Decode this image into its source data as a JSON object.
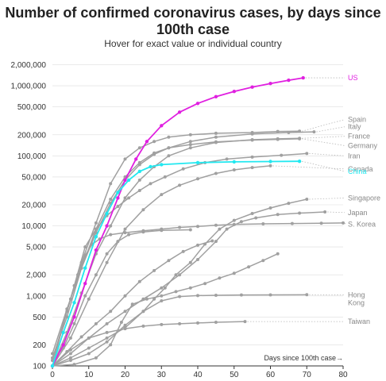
{
  "page": {
    "title": "Number of confirmed coronavirus cases, by days since 100th case",
    "subtitle": "Hover for exact value or individual country"
  },
  "chart_data": {
    "type": "line",
    "title": "Number of confirmed coronavirus cases, by days since 100th case",
    "subtitle": "Hover for exact value or individual country",
    "xlabel": "Days since 100th case→",
    "ylabel": "",
    "xlim": [
      0,
      80
    ],
    "ylim": [
      100,
      2500000
    ],
    "yscale": "log",
    "x_ticks": [
      0,
      10,
      20,
      30,
      40,
      50,
      60,
      70,
      80
    ],
    "x_tick_labels": [
      "0",
      "10",
      "20",
      "30",
      "40",
      "50",
      "60",
      "70",
      "80"
    ],
    "y_ticks": [
      100,
      200,
      500,
      1000,
      2000,
      5000,
      10000,
      20000,
      50000,
      100000,
      200000,
      500000,
      1000000,
      2000000
    ],
    "y_tick_labels": [
      "100",
      "200",
      "500",
      "1,000",
      "2,000",
      "5,000",
      "10,000",
      "20,000",
      "50,000",
      "100,000",
      "200,000",
      "500,000",
      "1,000,000",
      "2,000,000"
    ],
    "grid": true,
    "legend": "none",
    "colors": {
      "us": "#e020e0",
      "china": "#22e8f0",
      "other": "#a0a0a0",
      "leader": "#b8b8b8",
      "axis": "#333333",
      "grid": "#dddddd"
    },
    "series": [
      {
        "name": "US",
        "color": "#e020e0",
        "label_value": 1300000,
        "points": [
          [
            0,
            100
          ],
          [
            3,
            200
          ],
          [
            6,
            500
          ],
          [
            9,
            1500
          ],
          [
            12,
            4500
          ],
          [
            15,
            10000
          ],
          [
            18,
            25000
          ],
          [
            20,
            45000
          ],
          [
            23,
            90000
          ],
          [
            26,
            160000
          ],
          [
            30,
            270000
          ],
          [
            35,
            420000
          ],
          [
            40,
            560000
          ],
          [
            45,
            700000
          ],
          [
            50,
            830000
          ],
          [
            55,
            960000
          ],
          [
            60,
            1080000
          ],
          [
            65,
            1200000
          ],
          [
            69,
            1300000
          ]
        ]
      },
      {
        "name": "China",
        "color": "#22e8f0",
        "label_value": 60000,
        "points": [
          [
            0,
            100
          ],
          [
            3,
            300
          ],
          [
            6,
            800
          ],
          [
            9,
            2500
          ],
          [
            12,
            7000
          ],
          [
            15,
            15000
          ],
          [
            18,
            30000
          ],
          [
            21,
            45000
          ],
          [
            24,
            60000
          ],
          [
            27,
            70000
          ],
          [
            30,
            75000
          ],
          [
            40,
            80000
          ],
          [
            50,
            82000
          ],
          [
            60,
            83000
          ],
          [
            68,
            83500
          ]
        ]
      },
      {
        "name": "Spain",
        "color": "#a0a0a0",
        "label_value": 330000,
        "points": [
          [
            0,
            120
          ],
          [
            4,
            600
          ],
          [
            8,
            3000
          ],
          [
            12,
            11000
          ],
          [
            16,
            40000
          ],
          [
            20,
            90000
          ],
          [
            24,
            130000
          ],
          [
            28,
            160000
          ],
          [
            32,
            185000
          ],
          [
            38,
            200000
          ],
          [
            45,
            210000
          ],
          [
            55,
            215000
          ],
          [
            62,
            223000
          ],
          [
            68,
            225000
          ]
        ]
      },
      {
        "name": "Italy",
        "color": "#a0a0a0",
        "label_value": 260000,
        "points": [
          [
            0,
            150
          ],
          [
            4,
            650
          ],
          [
            8,
            2500
          ],
          [
            12,
            8000
          ],
          [
            16,
            21000
          ],
          [
            20,
            45000
          ],
          [
            24,
            75000
          ],
          [
            28,
            105000
          ],
          [
            32,
            130000
          ],
          [
            38,
            160000
          ],
          [
            45,
            185000
          ],
          [
            55,
            205000
          ],
          [
            65,
            215000
          ],
          [
            72,
            220000
          ]
        ]
      },
      {
        "name": "France",
        "color": "#a0a0a0",
        "label_value": 190000,
        "points": [
          [
            0,
            100
          ],
          [
            4,
            300
          ],
          [
            8,
            1100
          ],
          [
            12,
            4000
          ],
          [
            16,
            10000
          ],
          [
            20,
            25000
          ],
          [
            24,
            45000
          ],
          [
            28,
            70000
          ],
          [
            32,
            100000
          ],
          [
            38,
            130000
          ],
          [
            45,
            155000
          ],
          [
            55,
            170000
          ],
          [
            62,
            175000
          ],
          [
            68,
            178000
          ]
        ]
      },
      {
        "name": "Germany",
        "color": "#a0a0a0",
        "label_value": 140000,
        "points": [
          [
            0,
            130
          ],
          [
            4,
            500
          ],
          [
            8,
            2500
          ],
          [
            12,
            9000
          ],
          [
            16,
            24000
          ],
          [
            20,
            50000
          ],
          [
            24,
            80000
          ],
          [
            28,
            110000
          ],
          [
            32,
            130000
          ],
          [
            38,
            145000
          ],
          [
            45,
            158000
          ],
          [
            55,
            168000
          ],
          [
            62,
            172000
          ],
          [
            68,
            175000
          ]
        ]
      },
      {
        "name": "Iran",
        "color": "#a0a0a0",
        "label_value": 100000,
        "points": [
          [
            0,
            100
          ],
          [
            3,
            400
          ],
          [
            6,
            1400
          ],
          [
            9,
            5000
          ],
          [
            12,
            9000
          ],
          [
            15,
            14000
          ],
          [
            18,
            19000
          ],
          [
            21,
            25000
          ],
          [
            24,
            32000
          ],
          [
            27,
            40000
          ],
          [
            31,
            50000
          ],
          [
            36,
            65000
          ],
          [
            42,
            80000
          ],
          [
            48,
            90000
          ],
          [
            55,
            96000
          ],
          [
            63,
            102000
          ],
          [
            70,
            108000
          ]
        ]
      },
      {
        "name": "Canada",
        "color": "#a0a0a0",
        "label_value": 65000,
        "points": [
          [
            0,
            100
          ],
          [
            5,
            250
          ],
          [
            10,
            900
          ],
          [
            15,
            3000
          ],
          [
            20,
            9000
          ],
          [
            25,
            17000
          ],
          [
            30,
            28000
          ],
          [
            35,
            38000
          ],
          [
            40,
            47000
          ],
          [
            45,
            56000
          ],
          [
            50,
            63000
          ],
          [
            55,
            68000
          ],
          [
            60,
            72000
          ]
        ]
      },
      {
        "name": "Singapore",
        "color": "#a0a0a0",
        "label_value": 25000,
        "points": [
          [
            0,
            100
          ],
          [
            5,
            130
          ],
          [
            10,
            180
          ],
          [
            15,
            250
          ],
          [
            20,
            350
          ],
          [
            25,
            600
          ],
          [
            28,
            900
          ],
          [
            31,
            1300
          ],
          [
            34,
            2000
          ],
          [
            38,
            3000
          ],
          [
            42,
            5500
          ],
          [
            46,
            9000
          ],
          [
            50,
            12000
          ],
          [
            55,
            15000
          ],
          [
            60,
            18000
          ],
          [
            65,
            21000
          ],
          [
            70,
            24000
          ]
        ]
      },
      {
        "name": "Japan",
        "color": "#a0a0a0",
        "label_value": 15500,
        "points": [
          [
            0,
            100
          ],
          [
            5,
            150
          ],
          [
            10,
            250
          ],
          [
            15,
            400
          ],
          [
            20,
            600
          ],
          [
            25,
            900
          ],
          [
            30,
            1300
          ],
          [
            35,
            2000
          ],
          [
            40,
            3300
          ],
          [
            45,
            6000
          ],
          [
            48,
            9000
          ],
          [
            52,
            11500
          ],
          [
            56,
            13000
          ],
          [
            62,
            14500
          ],
          [
            68,
            15200
          ],
          [
            75,
            15800
          ]
        ]
      },
      {
        "name": "S. Korea",
        "color": "#a0a0a0",
        "label_value": 10500,
        "points": [
          [
            0,
            100
          ],
          [
            3,
            400
          ],
          [
            5,
            900
          ],
          [
            7,
            2000
          ],
          [
            9,
            3800
          ],
          [
            11,
            5500
          ],
          [
            13,
            6500
          ],
          [
            16,
            7500
          ],
          [
            20,
            8000
          ],
          [
            25,
            8500
          ],
          [
            30,
            9000
          ],
          [
            35,
            9500
          ],
          [
            40,
            9800
          ],
          [
            45,
            10200
          ],
          [
            50,
            10500
          ],
          [
            58,
            10700
          ],
          [
            66,
            10800
          ],
          [
            74,
            10900
          ],
          [
            80,
            11000
          ]
        ]
      },
      {
        "name": "Hong Kong",
        "color": "#a0a0a0",
        "label_value": 1030,
        "points": [
          [
            0,
            100
          ],
          [
            5,
            120
          ],
          [
            10,
            150
          ],
          [
            15,
            220
          ],
          [
            20,
            380
          ],
          [
            25,
            600
          ],
          [
            30,
            850
          ],
          [
            35,
            980
          ],
          [
            40,
            1010
          ],
          [
            45,
            1020
          ],
          [
            52,
            1030
          ],
          [
            60,
            1035
          ],
          [
            70,
            1040
          ]
        ]
      },
      {
        "name": "Taiwan",
        "color": "#a0a0a0",
        "label_value": 430,
        "points": [
          [
            0,
            100
          ],
          [
            5,
            170
          ],
          [
            10,
            250
          ],
          [
            15,
            300
          ],
          [
            20,
            340
          ],
          [
            25,
            370
          ],
          [
            30,
            390
          ],
          [
            35,
            400
          ],
          [
            40,
            410
          ],
          [
            45,
            420
          ],
          [
            53,
            430
          ]
        ]
      },
      {
        "name": "",
        "color": "#a0a0a0",
        "label_value": null,
        "points": [
          [
            0,
            120
          ],
          [
            3,
            180
          ],
          [
            6,
            400
          ],
          [
            9,
            1000
          ],
          [
            12,
            2000
          ],
          [
            15,
            4000
          ],
          [
            18,
            6000
          ],
          [
            21,
            7500
          ],
          [
            25,
            8200
          ],
          [
            30,
            8600
          ],
          [
            38,
            8800
          ]
        ]
      },
      {
        "name": "",
        "color": "#a0a0a0",
        "label_value": null,
        "points": [
          [
            0,
            100
          ],
          [
            4,
            160
          ],
          [
            8,
            260
          ],
          [
            12,
            400
          ],
          [
            16,
            600
          ],
          [
            20,
            1000
          ],
          [
            24,
            1600
          ],
          [
            28,
            2300
          ],
          [
            32,
            3200
          ],
          [
            36,
            4300
          ],
          [
            40,
            5300
          ],
          [
            44,
            6100
          ]
        ]
      },
      {
        "name": "",
        "color": "#a0a0a0",
        "label_value": null,
        "points": [
          [
            0,
            100
          ],
          [
            6,
            105
          ],
          [
            12,
            130
          ],
          [
            16,
            200
          ],
          [
            19,
            420
          ],
          [
            22,
            760
          ],
          [
            26,
            900
          ],
          [
            30,
            1000
          ],
          [
            34,
            1150
          ],
          [
            38,
            1300
          ],
          [
            42,
            1500
          ],
          [
            46,
            1800
          ],
          [
            50,
            2100
          ],
          [
            54,
            2600
          ],
          [
            58,
            3200
          ],
          [
            62,
            4000
          ]
        ]
      }
    ]
  }
}
